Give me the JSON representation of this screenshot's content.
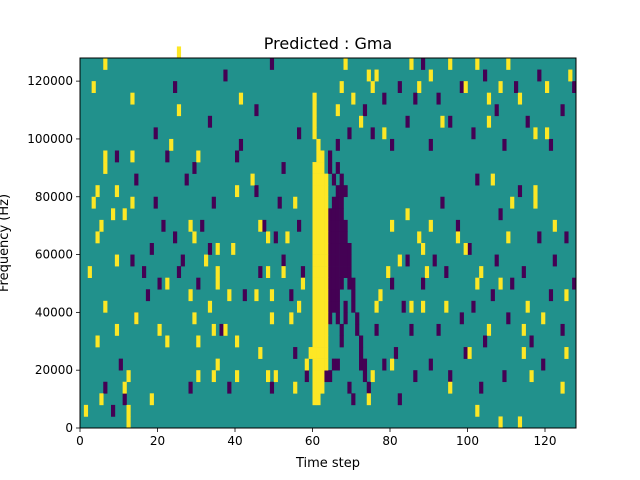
{
  "chart_data": {
    "type": "heatmap",
    "title": "Predicted : Gma",
    "xlabel": "Time step",
    "ylabel": "Frequency (Hz)",
    "xlim": [
      0,
      128
    ],
    "ylim": [
      0,
      128000
    ],
    "x_ticks": [
      0,
      20,
      40,
      60,
      80,
      100,
      120
    ],
    "y_ticks": [
      0,
      20000,
      40000,
      60000,
      80000,
      100000,
      120000
    ],
    "x_tick_labels": [
      "0",
      "20",
      "40",
      "60",
      "80",
      "100",
      "120"
    ],
    "y_tick_labels": [
      "0",
      "20000",
      "40000",
      "60000",
      "80000",
      "100000",
      "120000"
    ],
    "colormap": "viridis",
    "levels": [
      {
        "name": "low",
        "value": -1,
        "color": "#440154"
      },
      {
        "name": "mid",
        "value": 0,
        "color": "#21918c"
      },
      {
        "name": "high",
        "value": 1,
        "color": "#fde725"
      }
    ],
    "background_value": 0,
    "freq_bin_hz": 4000,
    "time_bin": 1,
    "high_cells": [
      [
        60,
        2
      ],
      [
        60,
        3
      ],
      [
        60,
        4
      ],
      [
        60,
        5
      ],
      [
        60,
        6
      ],
      [
        60,
        7
      ],
      [
        60,
        8
      ],
      [
        60,
        9
      ],
      [
        60,
        10
      ],
      [
        60,
        11
      ],
      [
        60,
        12
      ],
      [
        60,
        13
      ],
      [
        60,
        14
      ],
      [
        60,
        15
      ],
      [
        60,
        16
      ],
      [
        60,
        17
      ],
      [
        60,
        18
      ],
      [
        60,
        19
      ],
      [
        60,
        20
      ],
      [
        60,
        21
      ],
      [
        60,
        22
      ],
      [
        61,
        2
      ],
      [
        61,
        3
      ],
      [
        61,
        4
      ],
      [
        61,
        5
      ],
      [
        61,
        6
      ],
      [
        61,
        7
      ],
      [
        61,
        8
      ],
      [
        61,
        9
      ],
      [
        61,
        10
      ],
      [
        61,
        11
      ],
      [
        61,
        12
      ],
      [
        61,
        13
      ],
      [
        61,
        14
      ],
      [
        61,
        15
      ],
      [
        61,
        16
      ],
      [
        61,
        17
      ],
      [
        61,
        18
      ],
      [
        61,
        19
      ],
      [
        61,
        20
      ],
      [
        61,
        21
      ],
      [
        62,
        3
      ],
      [
        62,
        4
      ],
      [
        62,
        5
      ],
      [
        62,
        6
      ],
      [
        62,
        7
      ],
      [
        62,
        8
      ],
      [
        62,
        9
      ],
      [
        62,
        10
      ],
      [
        62,
        11
      ],
      [
        62,
        12
      ],
      [
        62,
        13
      ],
      [
        62,
        14
      ],
      [
        62,
        15
      ],
      [
        62,
        16
      ],
      [
        62,
        17
      ],
      [
        62,
        18
      ],
      [
        62,
        19
      ],
      [
        62,
        20
      ],
      [
        62,
        21
      ],
      [
        63,
        5
      ],
      [
        63,
        6
      ],
      [
        63,
        7
      ],
      [
        63,
        8
      ],
      [
        63,
        9
      ],
      [
        63,
        10
      ],
      [
        63,
        11
      ],
      [
        63,
        12
      ],
      [
        63,
        13
      ],
      [
        63,
        14
      ],
      [
        63,
        15
      ],
      [
        63,
        16
      ],
      [
        63,
        17
      ],
      [
        63,
        18
      ],
      [
        63,
        19
      ],
      [
        63,
        20
      ],
      [
        63,
        21
      ],
      [
        61,
        22
      ],
      [
        61,
        23
      ],
      [
        62,
        22
      ],
      [
        61,
        24
      ],
      [
        62,
        23
      ],
      [
        60,
        27
      ],
      [
        60,
        28
      ],
      [
        60,
        25
      ],
      [
        60,
        26
      ],
      [
        1,
        1
      ],
      [
        2,
        13
      ],
      [
        3,
        19
      ],
      [
        3,
        29
      ],
      [
        4,
        7
      ],
      [
        4,
        16
      ],
      [
        4,
        20
      ],
      [
        5,
        2
      ],
      [
        5,
        17
      ],
      [
        6,
        10
      ],
      [
        6,
        22
      ],
      [
        6,
        23
      ],
      [
        6,
        31
      ],
      [
        8,
        18
      ],
      [
        9,
        14
      ],
      [
        9,
        8
      ],
      [
        9,
        20
      ],
      [
        11,
        3
      ],
      [
        11,
        18
      ],
      [
        12,
        0
      ],
      [
        12,
        1
      ],
      [
        12,
        4
      ],
      [
        13,
        19
      ],
      [
        13,
        23
      ],
      [
        13,
        28
      ],
      [
        14,
        9
      ],
      [
        18,
        2
      ],
      [
        20,
        8
      ],
      [
        22,
        12
      ],
      [
        22,
        7
      ],
      [
        23,
        24
      ],
      [
        25,
        27
      ],
      [
        25,
        32
      ],
      [
        28,
        11
      ],
      [
        28,
        17
      ],
      [
        29,
        9
      ],
      [
        29,
        16
      ],
      [
        30,
        4
      ],
      [
        30,
        7
      ],
      [
        30,
        23
      ],
      [
        32,
        14
      ],
      [
        33,
        10
      ],
      [
        34,
        4
      ],
      [
        34,
        8
      ],
      [
        35,
        5
      ],
      [
        35,
        13
      ],
      [
        35,
        12
      ],
      [
        35,
        15
      ],
      [
        37,
        8
      ],
      [
        38,
        11
      ],
      [
        39,
        15
      ],
      [
        40,
        7
      ],
      [
        40,
        20
      ],
      [
        40,
        4
      ],
      [
        41,
        28
      ],
      [
        44,
        21
      ],
      [
        45,
        11
      ],
      [
        46,
        6
      ],
      [
        46,
        17
      ],
      [
        48,
        4
      ],
      [
        48,
        13
      ],
      [
        48,
        16
      ],
      [
        49,
        9
      ],
      [
        49,
        11
      ],
      [
        50,
        4
      ],
      [
        52,
        13
      ],
      [
        53,
        16
      ],
      [
        54,
        9
      ],
      [
        55,
        3
      ],
      [
        55,
        19
      ],
      [
        56,
        10
      ],
      [
        57,
        12
      ],
      [
        58,
        5
      ],
      [
        59,
        6
      ],
      [
        74,
        2
      ],
      [
        75,
        4
      ],
      [
        76,
        10
      ],
      [
        77,
        11
      ],
      [
        79,
        13
      ],
      [
        80,
        17
      ],
      [
        80,
        5
      ],
      [
        82,
        14
      ],
      [
        84,
        18
      ],
      [
        85,
        10
      ],
      [
        87,
        16
      ],
      [
        88,
        15
      ],
      [
        88,
        10
      ],
      [
        89,
        13
      ],
      [
        90,
        17
      ],
      [
        94,
        10
      ],
      [
        95,
        3
      ],
      [
        97,
        16
      ],
      [
        99,
        15
      ],
      [
        100,
        6
      ],
      [
        102,
        1
      ],
      [
        102,
        12
      ],
      [
        103,
        13
      ],
      [
        105,
        8
      ],
      [
        105,
        28
      ],
      [
        106,
        21
      ],
      [
        108,
        12
      ],
      [
        108,
        29
      ],
      [
        108,
        0
      ],
      [
        110,
        16
      ],
      [
        111,
        19
      ],
      [
        113,
        0
      ],
      [
        114,
        6
      ],
      [
        114,
        8
      ],
      [
        115,
        10
      ],
      [
        116,
        4
      ],
      [
        117,
        19
      ],
      [
        117,
        20
      ],
      [
        119,
        9
      ],
      [
        120,
        25
      ],
      [
        122,
        17
      ],
      [
        124,
        3
      ],
      [
        125,
        11
      ],
      [
        125,
        6
      ],
      [
        126,
        30
      ],
      [
        66,
        27
      ],
      [
        67,
        29
      ],
      [
        68,
        31
      ],
      [
        70,
        28
      ],
      [
        72,
        26
      ],
      [
        74,
        30
      ],
      [
        75,
        29
      ],
      [
        76,
        30
      ],
      [
        78,
        25
      ],
      [
        85,
        31
      ],
      [
        87,
        29
      ],
      [
        90,
        30
      ],
      [
        93,
        26
      ],
      [
        95,
        31
      ],
      [
        99,
        29
      ],
      [
        102,
        31
      ],
      [
        105,
        26
      ],
      [
        110,
        31
      ],
      [
        113,
        28
      ],
      [
        117,
        25
      ],
      [
        120,
        29
      ]
    ],
    "low_cells": [
      [
        64,
        10
      ],
      [
        64,
        11
      ],
      [
        64,
        12
      ],
      [
        64,
        13
      ],
      [
        64,
        14
      ],
      [
        64,
        15
      ],
      [
        64,
        16
      ],
      [
        64,
        17
      ],
      [
        64,
        18
      ],
      [
        65,
        10
      ],
      [
        65,
        11
      ],
      [
        65,
        12
      ],
      [
        65,
        13
      ],
      [
        65,
        14
      ],
      [
        65,
        15
      ],
      [
        65,
        16
      ],
      [
        65,
        17
      ],
      [
        65,
        18
      ],
      [
        65,
        19
      ],
      [
        66,
        9
      ],
      [
        66,
        10
      ],
      [
        66,
        11
      ],
      [
        66,
        12
      ],
      [
        66,
        13
      ],
      [
        66,
        14
      ],
      [
        66,
        15
      ],
      [
        66,
        16
      ],
      [
        66,
        17
      ],
      [
        66,
        18
      ],
      [
        66,
        19
      ],
      [
        66,
        20
      ],
      [
        67,
        12
      ],
      [
        67,
        13
      ],
      [
        67,
        14
      ],
      [
        67,
        15
      ],
      [
        67,
        16
      ],
      [
        67,
        17
      ],
      [
        67,
        18
      ],
      [
        67,
        19
      ],
      [
        67,
        20
      ],
      [
        68,
        13
      ],
      [
        68,
        14
      ],
      [
        68,
        15
      ],
      [
        68,
        16
      ],
      [
        68,
        17
      ],
      [
        69,
        12
      ],
      [
        69,
        13
      ],
      [
        69,
        14
      ],
      [
        69,
        15
      ],
      [
        70,
        10
      ],
      [
        70,
        11
      ],
      [
        70,
        12
      ],
      [
        71,
        8
      ],
      [
        71,
        9
      ],
      [
        72,
        5
      ],
      [
        72,
        6
      ],
      [
        72,
        7
      ],
      [
        73,
        4
      ],
      [
        73,
        5
      ],
      [
        74,
        3
      ],
      [
        63,
        4
      ],
      [
        64,
        9
      ],
      [
        64,
        4
      ],
      [
        65,
        5
      ],
      [
        66,
        5
      ],
      [
        67,
        7
      ],
      [
        67,
        8
      ],
      [
        68,
        9
      ],
      [
        68,
        10
      ],
      [
        69,
        3
      ],
      [
        70,
        2
      ],
      [
        64,
        23
      ],
      [
        64,
        22
      ],
      [
        65,
        21
      ],
      [
        66,
        24
      ],
      [
        67,
        21
      ],
      [
        68,
        20
      ],
      [
        69,
        25
      ],
      [
        66,
        22
      ],
      [
        6,
        3
      ],
      [
        8,
        1
      ],
      [
        10,
        5
      ],
      [
        11,
        2
      ],
      [
        13,
        14
      ],
      [
        14,
        9
      ],
      [
        16,
        13
      ],
      [
        17,
        11
      ],
      [
        18,
        15
      ],
      [
        19,
        19
      ],
      [
        20,
        12
      ],
      [
        21,
        17
      ],
      [
        22,
        23
      ],
      [
        24,
        16
      ],
      [
        25,
        13
      ],
      [
        26,
        14
      ],
      [
        27,
        21
      ],
      [
        28,
        3
      ],
      [
        30,
        12
      ],
      [
        31,
        17
      ],
      [
        33,
        15
      ],
      [
        34,
        19
      ],
      [
        36,
        8
      ],
      [
        38,
        3
      ],
      [
        40,
        23
      ],
      [
        42,
        11
      ],
      [
        45,
        20
      ],
      [
        46,
        13
      ],
      [
        47,
        17
      ],
      [
        49,
        3
      ],
      [
        50,
        16
      ],
      [
        51,
        19
      ],
      [
        52,
        14
      ],
      [
        54,
        11
      ],
      [
        55,
        6
      ],
      [
        56,
        17
      ],
      [
        57,
        13
      ],
      [
        58,
        4
      ],
      [
        76,
        8
      ],
      [
        78,
        5
      ],
      [
        80,
        12
      ],
      [
        81,
        6
      ],
      [
        82,
        2
      ],
      [
        83,
        10
      ],
      [
        84,
        14
      ],
      [
        85,
        8
      ],
      [
        86,
        4
      ],
      [
        88,
        12
      ],
      [
        90,
        5
      ],
      [
        91,
        14
      ],
      [
        92,
        8
      ],
      [
        93,
        19
      ],
      [
        94,
        13
      ],
      [
        95,
        4
      ],
      [
        97,
        17
      ],
      [
        98,
        9
      ],
      [
        99,
        6
      ],
      [
        100,
        15
      ],
      [
        101,
        10
      ],
      [
        102,
        21
      ],
      [
        103,
        3
      ],
      [
        104,
        7
      ],
      [
        106,
        11
      ],
      [
        107,
        14
      ],
      [
        108,
        18
      ],
      [
        109,
        4
      ],
      [
        110,
        9
      ],
      [
        111,
        12
      ],
      [
        113,
        20
      ],
      [
        114,
        13
      ],
      [
        116,
        7
      ],
      [
        118,
        16
      ],
      [
        119,
        5
      ],
      [
        121,
        11
      ],
      [
        122,
        14
      ],
      [
        124,
        8
      ],
      [
        125,
        16
      ],
      [
        127,
        12
      ],
      [
        73,
        27
      ],
      [
        75,
        25
      ],
      [
        78,
        28
      ],
      [
        80,
        24
      ],
      [
        82,
        29
      ],
      [
        84,
        26
      ],
      [
        86,
        28
      ],
      [
        88,
        31
      ],
      [
        90,
        24
      ],
      [
        92,
        28
      ],
      [
        95,
        26
      ],
      [
        98,
        29
      ],
      [
        101,
        25
      ],
      [
        104,
        30
      ],
      [
        107,
        27
      ],
      [
        109,
        24
      ],
      [
        112,
        29
      ],
      [
        115,
        26
      ],
      [
        118,
        30
      ],
      [
        121,
        24
      ],
      [
        124,
        27
      ],
      [
        127,
        29
      ],
      [
        9,
        23
      ],
      [
        14,
        21
      ],
      [
        19,
        25
      ],
      [
        24,
        29
      ],
      [
        29,
        22
      ],
      [
        33,
        26
      ],
      [
        37,
        30
      ],
      [
        41,
        24
      ],
      [
        45,
        27
      ],
      [
        49,
        31
      ],
      [
        52,
        22
      ],
      [
        56,
        25
      ]
    ]
  }
}
